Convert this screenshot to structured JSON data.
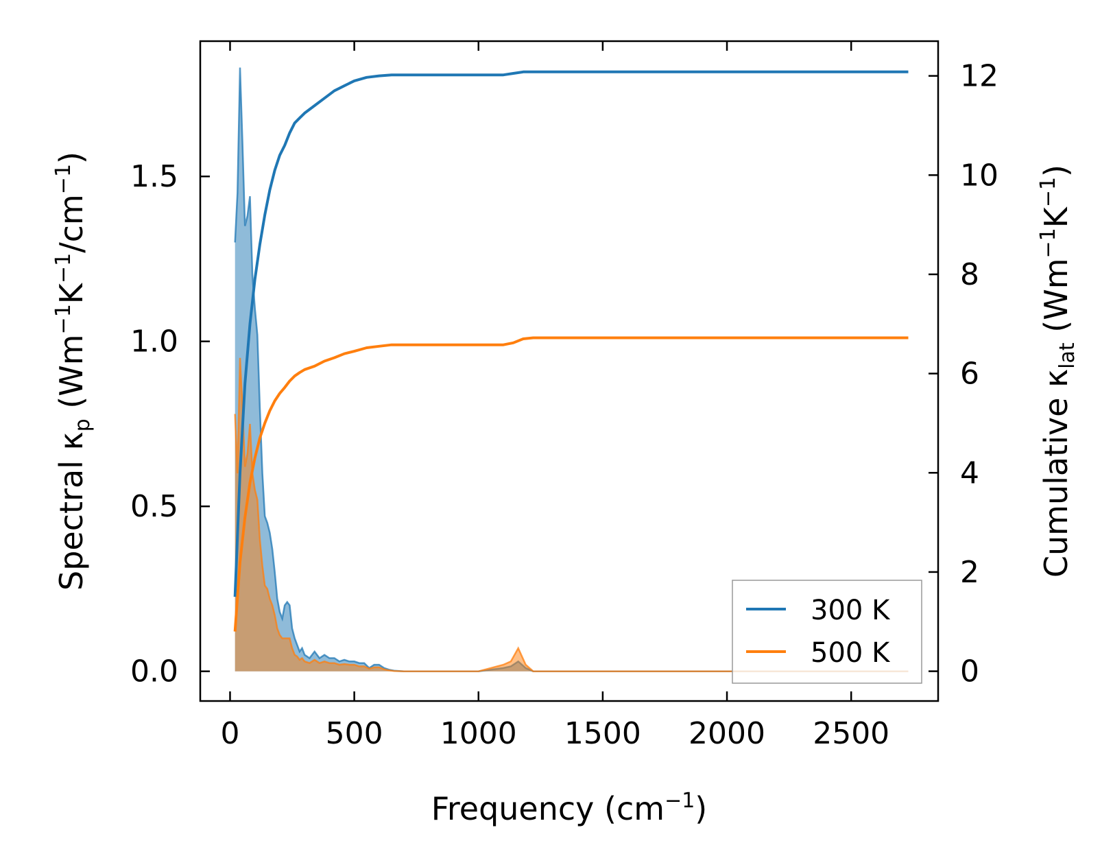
{
  "chart_data": {
    "type": "line",
    "xlabel": {
      "main": "Frequency (cm",
      "sup": "−1",
      "end": ")"
    },
    "ylabel_left": {
      "p1": "Spectral κ",
      "sub1": "p",
      "p2": " (Wm",
      "sup1": "−1",
      "p3": "K",
      "sup2": "−1",
      "p4": "/cm",
      "sup3": "−1",
      "p5": ")"
    },
    "ylabel_right": {
      "p1": "Cumulative κ",
      "sub1": "lat",
      "p2": " (Wm",
      "sup1": "−1",
      "p3": "K",
      "sup2": "−1",
      "p4": ")"
    },
    "xlim": [
      -120,
      2850
    ],
    "ylim_left": [
      -0.09,
      1.91
    ],
    "ylim_right": [
      -0.6,
      12.7
    ],
    "x_ticks": [
      0,
      500,
      1000,
      1500,
      2000,
      2500
    ],
    "x_tick_labels": [
      "0",
      "500",
      "1000",
      "1500",
      "2000",
      "2500"
    ],
    "y_left_ticks": [
      0.0,
      0.5,
      1.0,
      1.5
    ],
    "y_left_tick_labels": [
      "0.0",
      "0.5",
      "1.0",
      "1.5"
    ],
    "y_right_ticks": [
      0,
      2,
      4,
      6,
      8,
      10,
      12
    ],
    "y_right_tick_labels": [
      "0",
      "2",
      "4",
      "6",
      "8",
      "10",
      "12"
    ],
    "legend_position": "lower-right",
    "series": [
      {
        "name": "300 K",
        "color": "#1f77b4",
        "spectral": {
          "x": [
            20,
            30,
            40,
            50,
            60,
            70,
            80,
            90,
            100,
            110,
            120,
            130,
            140,
            150,
            160,
            170,
            180,
            190,
            200,
            210,
            220,
            230,
            240,
            250,
            260,
            270,
            280,
            290,
            300,
            320,
            340,
            360,
            380,
            400,
            420,
            440,
            460,
            480,
            500,
            520,
            540,
            560,
            580,
            600,
            620,
            640,
            660,
            700,
            800,
            900,
            1000,
            1100,
            1130,
            1160,
            1190,
            1220,
            1300,
            1500,
            2000,
            2500,
            2730
          ],
          "y": [
            1.3,
            1.45,
            1.83,
            1.6,
            1.35,
            1.38,
            1.44,
            1.2,
            1.1,
            1.02,
            0.8,
            0.6,
            0.47,
            0.45,
            0.42,
            0.37,
            0.3,
            0.22,
            0.18,
            0.16,
            0.2,
            0.21,
            0.2,
            0.13,
            0.1,
            0.08,
            0.06,
            0.07,
            0.05,
            0.04,
            0.06,
            0.04,
            0.05,
            0.04,
            0.04,
            0.03,
            0.035,
            0.03,
            0.03,
            0.025,
            0.025,
            0.01,
            0.02,
            0.02,
            0.01,
            0.005,
            0.002,
            0.0,
            0.0,
            0.0,
            0.0,
            0.01,
            0.015,
            0.03,
            0.01,
            0.0,
            0.0,
            0.0,
            0.0,
            0.0,
            0.0
          ]
        },
        "cumulative": {
          "x": [
            20,
            40,
            60,
            80,
            100,
            120,
            140,
            160,
            180,
            200,
            220,
            240,
            260,
            280,
            300,
            340,
            380,
            420,
            460,
            500,
            550,
            600,
            650,
            700,
            800,
            1000,
            1100,
            1140,
            1180,
            1220,
            1500,
            2000,
            2500,
            2730
          ],
          "y": [
            1.5,
            4.0,
            5.8,
            7.0,
            7.9,
            8.6,
            9.2,
            9.7,
            10.1,
            10.4,
            10.6,
            10.85,
            11.05,
            11.15,
            11.25,
            11.4,
            11.55,
            11.7,
            11.8,
            11.9,
            11.97,
            12.0,
            12.02,
            12.02,
            12.02,
            12.02,
            12.02,
            12.05,
            12.08,
            12.08,
            12.08,
            12.08,
            12.08,
            12.08
          ]
        }
      },
      {
        "name": "500 K",
        "color": "#ff7f0e",
        "spectral": {
          "x": [
            20,
            30,
            40,
            50,
            60,
            70,
            80,
            90,
            100,
            110,
            120,
            130,
            140,
            150,
            160,
            170,
            180,
            190,
            200,
            210,
            220,
            230,
            240,
            250,
            260,
            270,
            280,
            290,
            300,
            320,
            340,
            360,
            380,
            400,
            420,
            440,
            460,
            480,
            500,
            520,
            540,
            560,
            580,
            600,
            620,
            640,
            660,
            700,
            800,
            900,
            1000,
            1100,
            1130,
            1160,
            1190,
            1220,
            1300,
            1500,
            2000,
            2500,
            2730
          ],
          "y": [
            0.78,
            0.6,
            0.95,
            0.8,
            0.62,
            0.66,
            0.75,
            0.6,
            0.55,
            0.52,
            0.4,
            0.32,
            0.26,
            0.25,
            0.22,
            0.2,
            0.17,
            0.13,
            0.11,
            0.1,
            0.1,
            0.1,
            0.1,
            0.07,
            0.05,
            0.045,
            0.035,
            0.04,
            0.03,
            0.025,
            0.035,
            0.025,
            0.03,
            0.025,
            0.025,
            0.02,
            0.022,
            0.02,
            0.02,
            0.015,
            0.015,
            0.008,
            0.012,
            0.012,
            0.006,
            0.003,
            0.001,
            0.0,
            0.0,
            0.0,
            0.0,
            0.02,
            0.03,
            0.07,
            0.02,
            0.0,
            0.0,
            0.0,
            0.0,
            0.0,
            0.0
          ]
        },
        "cumulative": {
          "x": [
            20,
            40,
            60,
            80,
            100,
            120,
            140,
            160,
            180,
            200,
            220,
            240,
            260,
            280,
            300,
            340,
            380,
            420,
            460,
            500,
            550,
            600,
            650,
            700,
            800,
            1000,
            1100,
            1140,
            1180,
            1220,
            1500,
            2000,
            2500,
            2730
          ],
          "y": [
            0.8,
            2.2,
            3.1,
            3.8,
            4.3,
            4.7,
            5.0,
            5.25,
            5.45,
            5.6,
            5.72,
            5.85,
            5.95,
            6.02,
            6.08,
            6.15,
            6.25,
            6.32,
            6.4,
            6.45,
            6.52,
            6.55,
            6.58,
            6.58,
            6.58,
            6.58,
            6.58,
            6.62,
            6.7,
            6.72,
            6.72,
            6.72,
            6.72,
            6.72
          ]
        }
      }
    ]
  }
}
